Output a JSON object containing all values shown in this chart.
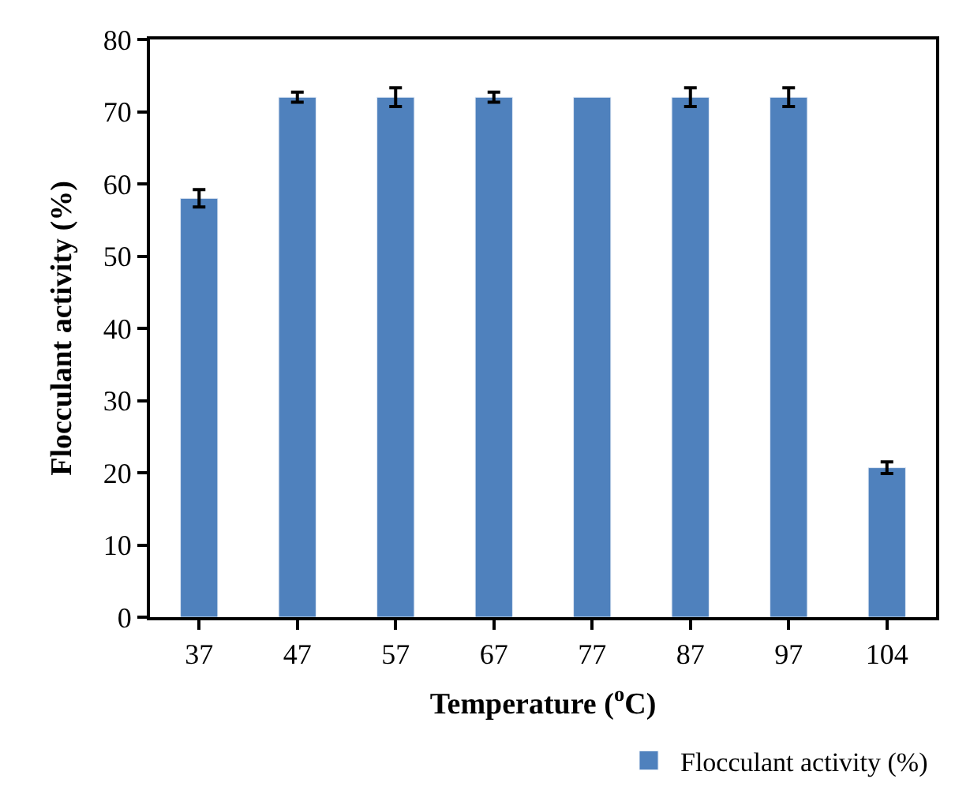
{
  "chart_data": {
    "type": "bar",
    "xlabel": "Temperature ($^{o}$C)",
    "ylabel": "Flocculant activity (%)",
    "categories": [
      "37",
      "47",
      "57",
      "67",
      "77",
      "87",
      "97",
      "104"
    ],
    "series": [
      {
        "name": "Flocculant activity (%)",
        "color": "#4f81bd",
        "values": [
          58,
          72,
          72,
          72,
          72,
          72,
          72,
          20.7
        ],
        "errors": [
          1.2,
          0.7,
          1.3,
          0.7,
          null,
          1.3,
          1.3,
          0.8
        ]
      }
    ],
    "ylim": [
      0,
      80
    ],
    "yticks": [
      0,
      10,
      20,
      30,
      40,
      50,
      60,
      70,
      80
    ],
    "grid": false,
    "legend": "bottom right"
  }
}
